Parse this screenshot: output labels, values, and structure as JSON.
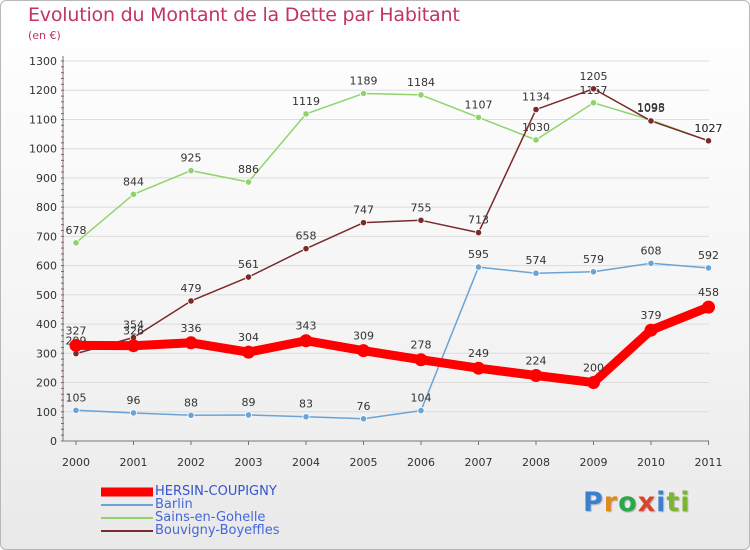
{
  "chart_data": {
    "type": "line",
    "title": "Evolution du Montant de la Dette par Habitant",
    "subtitle": "(en €)",
    "xlabel": "",
    "ylabel": "",
    "ylim": [
      0,
      1300
    ],
    "yticks": [
      0,
      100,
      200,
      300,
      400,
      500,
      600,
      700,
      800,
      900,
      1000,
      1100,
      1200,
      1300
    ],
    "categories": [
      "2000",
      "2001",
      "2002",
      "2003",
      "2004",
      "2005",
      "2006",
      "2007",
      "2008",
      "2009",
      "2010",
      "2011"
    ],
    "grid": true,
    "legend_position": "bottom-left",
    "series": [
      {
        "name": "HERSIN-COUPIGNY",
        "color": "#ff0000",
        "emphasis": true,
        "values": [
          327,
          326,
          336,
          304,
          343,
          309,
          278,
          249,
          224,
          200,
          379,
          458
        ]
      },
      {
        "name": "Barlin",
        "color": "#6aa4d6",
        "values": [
          105,
          96,
          88,
          89,
          83,
          76,
          104,
          595,
          574,
          579,
          608,
          592
        ]
      },
      {
        "name": "Sains-en-Gohelle",
        "color": "#8fd46a",
        "values": [
          678,
          844,
          925,
          886,
          1119,
          1189,
          1184,
          1107,
          1030,
          1157,
          1098,
          1027
        ]
      },
      {
        "name": "Bouvigny-Boyeffles",
        "color": "#7a2a2a",
        "values": [
          299,
          354,
          479,
          561,
          658,
          747,
          755,
          713,
          1134,
          1205,
          1095,
          1027
        ]
      }
    ]
  },
  "logo": {
    "letters": [
      "P",
      "r",
      "o",
      "x",
      "i",
      "t",
      "i"
    ]
  }
}
